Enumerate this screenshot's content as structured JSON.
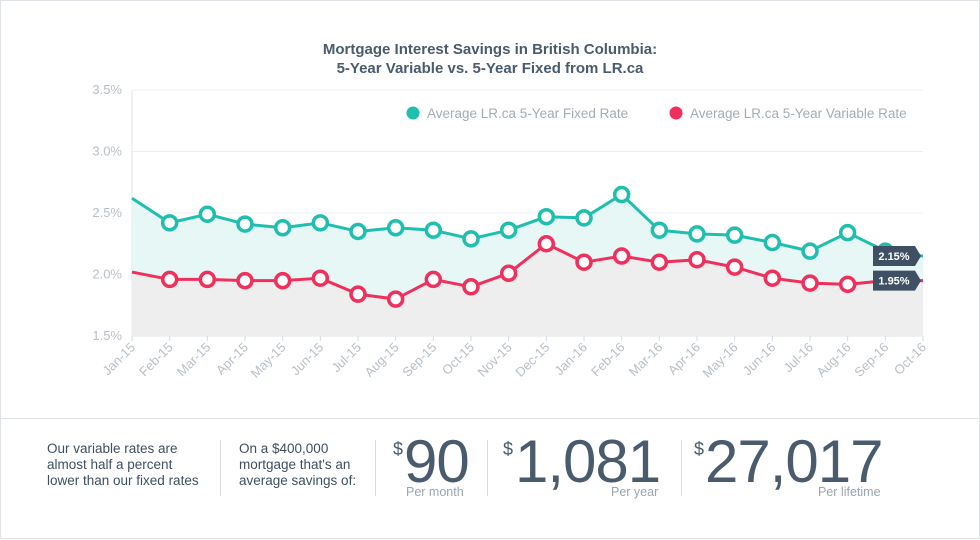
{
  "chart_data": {
    "type": "line",
    "title_line1": "Mortgage Interest Savings in British Columbia:",
    "title_line2": "5-Year Variable vs. 5-Year Fixed from LR.ca",
    "categories": [
      "Jan-15",
      "Feb-15",
      "Mar-15",
      "Apr-15",
      "May-15",
      "Jun-15",
      "Jul-15",
      "Aug-15",
      "Sep-15",
      "Oct-15",
      "Nov-15",
      "Dec-15",
      "Jan-16",
      "Feb-16",
      "Mar-16",
      "Apr-16",
      "May-16",
      "Jun-16",
      "Jul-16",
      "Aug-16",
      "Sep-16",
      "Oct-16"
    ],
    "ylim": [
      1.5,
      3.5
    ],
    "yticks": [
      "1.5%",
      "2.0%",
      "2.5%",
      "3.0%",
      "3.5%"
    ],
    "series": [
      {
        "name": "Average LR.ca 5-Year Fixed Rate",
        "color": "#1fbfb0",
        "fill": "#e2f6f4",
        "values": [
          2.62,
          2.42,
          2.49,
          2.41,
          2.38,
          2.42,
          2.35,
          2.38,
          2.36,
          2.29,
          2.36,
          2.47,
          2.46,
          2.65,
          2.36,
          2.33,
          2.32,
          2.26,
          2.19,
          2.34,
          2.19,
          2.15
        ],
        "end_label": "2.15%"
      },
      {
        "name": "Average LR.ca 5-Year Variable Rate",
        "color": "#f0305c",
        "fill": "#f0ecee",
        "values": [
          2.02,
          1.96,
          1.96,
          1.95,
          1.95,
          1.97,
          1.84,
          1.8,
          1.96,
          1.9,
          2.01,
          2.25,
          2.1,
          2.15,
          2.1,
          2.12,
          2.06,
          1.97,
          1.93,
          1.92,
          1.95,
          1.95
        ],
        "end_label": "1.95%"
      }
    ]
  },
  "footer": {
    "intro": [
      "Our variable rates are",
      "almost half a percent",
      "lower than our fixed rates"
    ],
    "context": [
      "On a $400,000",
      "mortgage that's an",
      "average savings of:"
    ],
    "dollar_sign": "$",
    "per_month_value": "90",
    "per_month_label": "Per month",
    "per_year_value": "1,081",
    "per_year_label": "Per year",
    "per_lifetime_value": "27,017",
    "per_lifetime_label": "Per lifetime"
  }
}
